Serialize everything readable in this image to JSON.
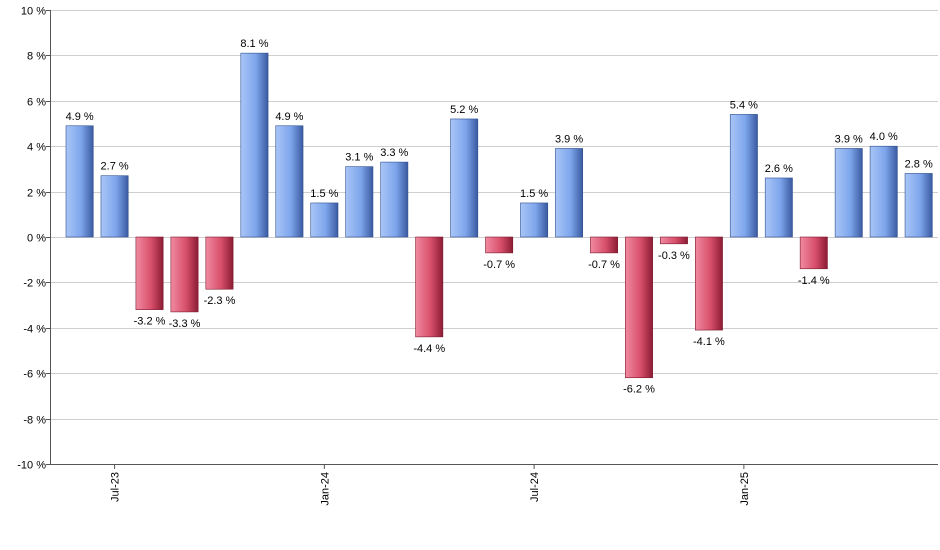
{
  "chart_data": {
    "type": "bar",
    "title": "",
    "xlabel": "",
    "ylabel": "",
    "ylim": [
      -10,
      10
    ],
    "y_ticks": [
      {
        "value": 10,
        "label": "10 %"
      },
      {
        "value": 8,
        "label": "8 %"
      },
      {
        "value": 6,
        "label": "6 %"
      },
      {
        "value": 4,
        "label": "4 %"
      },
      {
        "value": 2,
        "label": "2 %"
      },
      {
        "value": 0,
        "label": "0 %"
      },
      {
        "value": -2,
        "label": "-2 %"
      },
      {
        "value": -4,
        "label": "-4 %"
      },
      {
        "value": -6,
        "label": "-6 %"
      },
      {
        "value": -8,
        "label": "-8 %"
      },
      {
        "value": -10,
        "label": "-10 %"
      }
    ],
    "grid": true,
    "positive_color": "#7ea6ec",
    "negative_color": "#d8506c",
    "values": [
      4.9,
      2.7,
      -3.2,
      -3.3,
      -2.3,
      8.1,
      4.9,
      1.5,
      3.1,
      3.3,
      -4.4,
      5.2,
      -0.7,
      1.5,
      3.9,
      -0.7,
      -6.2,
      -0.3,
      -4.1,
      5.4,
      2.6,
      -1.4,
      3.9,
      4.0,
      2.8
    ],
    "data_labels": [
      "4.9 %",
      "2.7 %",
      "-3.2 %",
      "-3.3 %",
      "-2.3 %",
      "8.1 %",
      "4.9 %",
      "1.5 %",
      "3.1 %",
      "3.3 %",
      "-4.4 %",
      "5.2 %",
      "-0.7 %",
      "1.5 %",
      "3.9 %",
      "-0.7 %",
      "-6.2 %",
      "-0.3 %",
      "-4.1 %",
      "5.4 %",
      "2.6 %",
      "-1.4 %",
      "3.9 %",
      "4.0 %",
      "2.8 %"
    ],
    "x_ticks": [
      {
        "index": 1,
        "label": "Jul-23"
      },
      {
        "index": 7,
        "label": "Jan-24"
      },
      {
        "index": 13,
        "label": "Jul-24"
      },
      {
        "index": 19,
        "label": "Jan-25"
      }
    ]
  }
}
